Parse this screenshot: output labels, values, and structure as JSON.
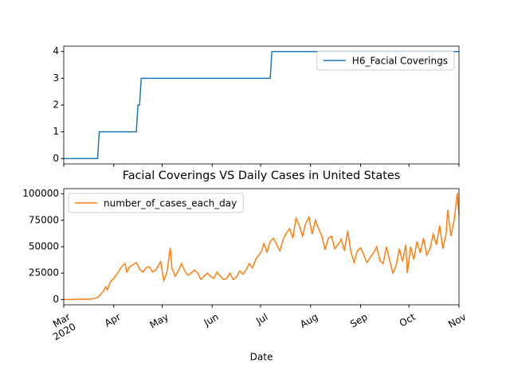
{
  "chart_data": [
    {
      "type": "line",
      "x": [
        "2020-03-01",
        "2020-03-22",
        "2020-03-23",
        "2020-04-15",
        "2020-04-16",
        "2020-04-17",
        "2020-04-18",
        "2020-07-07",
        "2020-07-08",
        "2020-11-01"
      ],
      "series": [
        {
          "name": "H6_Facial Coverings",
          "color": "#1f77b4",
          "values": [
            0,
            0,
            1,
            1,
            2,
            2,
            3,
            3,
            4,
            4
          ]
        }
      ],
      "xlim": [
        "2020-03-01",
        "2020-11-01"
      ],
      "ylim": [
        -0.2,
        4.2
      ],
      "yticks": [
        0,
        1,
        2,
        3,
        4
      ],
      "legend": "upper right"
    },
    {
      "type": "line",
      "title": "Facial Coverings VS Daily Cases in United States",
      "xlabel": "Date",
      "x": [
        "2020-03-01",
        "2020-03-04",
        "2020-03-07",
        "2020-03-10",
        "2020-03-13",
        "2020-03-16",
        "2020-03-19",
        "2020-03-22",
        "2020-03-24",
        "2020-03-26",
        "2020-03-27",
        "2020-03-28",
        "2020-03-30",
        "2020-04-01",
        "2020-04-03",
        "2020-04-05",
        "2020-04-07",
        "2020-04-08",
        "2020-04-09",
        "2020-04-11",
        "2020-04-13",
        "2020-04-15",
        "2020-04-17",
        "2020-04-19",
        "2020-04-21",
        "2020-04-23",
        "2020-04-25",
        "2020-04-27",
        "2020-04-29",
        "2020-04-30",
        "2020-05-02",
        "2020-05-04",
        "2020-05-06",
        "2020-05-07",
        "2020-05-09",
        "2020-05-11",
        "2020-05-13",
        "2020-05-15",
        "2020-05-17",
        "2020-05-19",
        "2020-05-21",
        "2020-05-23",
        "2020-05-25",
        "2020-05-27",
        "2020-05-29",
        "2020-05-31",
        "2020-06-02",
        "2020-06-04",
        "2020-06-06",
        "2020-06-08",
        "2020-06-10",
        "2020-06-12",
        "2020-06-14",
        "2020-06-16",
        "2020-06-18",
        "2020-06-20",
        "2020-06-22",
        "2020-06-24",
        "2020-06-26",
        "2020-06-28",
        "2020-06-30",
        "2020-07-02",
        "2020-07-03",
        "2020-07-05",
        "2020-07-07",
        "2020-07-09",
        "2020-07-11",
        "2020-07-13",
        "2020-07-15",
        "2020-07-17",
        "2020-07-19",
        "2020-07-21",
        "2020-07-23",
        "2020-07-25",
        "2020-07-27",
        "2020-07-29",
        "2020-07-31",
        "2020-08-02",
        "2020-08-04",
        "2020-08-06",
        "2020-08-08",
        "2020-08-10",
        "2020-08-12",
        "2020-08-14",
        "2020-08-16",
        "2020-08-18",
        "2020-08-20",
        "2020-08-22",
        "2020-08-24",
        "2020-08-26",
        "2020-08-28",
        "2020-08-30",
        "2020-09-01",
        "2020-09-03",
        "2020-09-05",
        "2020-09-07",
        "2020-09-09",
        "2020-09-11",
        "2020-09-13",
        "2020-09-15",
        "2020-09-17",
        "2020-09-19",
        "2020-09-21",
        "2020-09-23",
        "2020-09-25",
        "2020-09-27",
        "2020-09-29",
        "2020-09-30",
        "2020-10-02",
        "2020-10-04",
        "2020-10-06",
        "2020-10-08",
        "2020-10-10",
        "2020-10-12",
        "2020-10-14",
        "2020-10-16",
        "2020-10-18",
        "2020-10-20",
        "2020-10-22",
        "2020-10-24",
        "2020-10-25",
        "2020-10-27",
        "2020-10-29",
        "2020-10-30",
        "2020-10-31",
        "2020-11-01"
      ],
      "series": [
        {
          "name": "number_of_cases_each_day",
          "color": "#ff7f0e",
          "values": [
            0,
            0,
            100,
            300,
            500,
            200,
            600,
            2000,
            5000,
            9000,
            12000,
            9000,
            17000,
            20000,
            24000,
            29000,
            33000,
            34000,
            26000,
            31000,
            33000,
            35000,
            29000,
            26000,
            30000,
            31000,
            26000,
            28000,
            33000,
            36000,
            18000,
            26000,
            49000,
            30000,
            22000,
            27000,
            34000,
            27000,
            23000,
            25000,
            28000,
            25000,
            19000,
            22000,
            25000,
            22000,
            20000,
            26000,
            22000,
            19000,
            20000,
            25000,
            19000,
            21000,
            27000,
            24000,
            28000,
            34000,
            30000,
            38000,
            42000,
            47000,
            53000,
            45000,
            55000,
            58000,
            52000,
            46000,
            57000,
            63000,
            67000,
            58000,
            77000,
            70000,
            60000,
            72000,
            78000,
            62000,
            75000,
            67000,
            60000,
            47000,
            58000,
            60000,
            48000,
            52000,
            57000,
            46000,
            65000,
            45000,
            35000,
            46000,
            49000,
            42000,
            35000,
            40000,
            44000,
            50000,
            37000,
            34000,
            50000,
            37000,
            25000,
            32000,
            48000,
            36000,
            52000,
            25000,
            50000,
            38000,
            55000,
            44000,
            58000,
            42000,
            48000,
            62000,
            52000,
            70000,
            48000,
            62000,
            85000,
            60000,
            75000,
            88000,
            101000,
            80000
          ]
        }
      ],
      "xlim": [
        "2020-03-01",
        "2020-11-01"
      ],
      "xticks": [
        {
          "value": "2020-03-01",
          "label": "Mar\n2020"
        },
        {
          "value": "2020-04-01",
          "label": "Apr"
        },
        {
          "value": "2020-05-01",
          "label": "May"
        },
        {
          "value": "2020-06-01",
          "label": "Jun"
        },
        {
          "value": "2020-07-01",
          "label": "Jul"
        },
        {
          "value": "2020-08-01",
          "label": "Aug"
        },
        {
          "value": "2020-09-01",
          "label": "Sep"
        },
        {
          "value": "2020-10-01",
          "label": "Oct"
        },
        {
          "value": "2020-11-01",
          "label": "Nov"
        }
      ],
      "ylim": [
        -5000,
        105000
      ],
      "yticks": [
        0,
        25000,
        50000,
        75000,
        100000
      ],
      "legend": "upper left"
    }
  ]
}
